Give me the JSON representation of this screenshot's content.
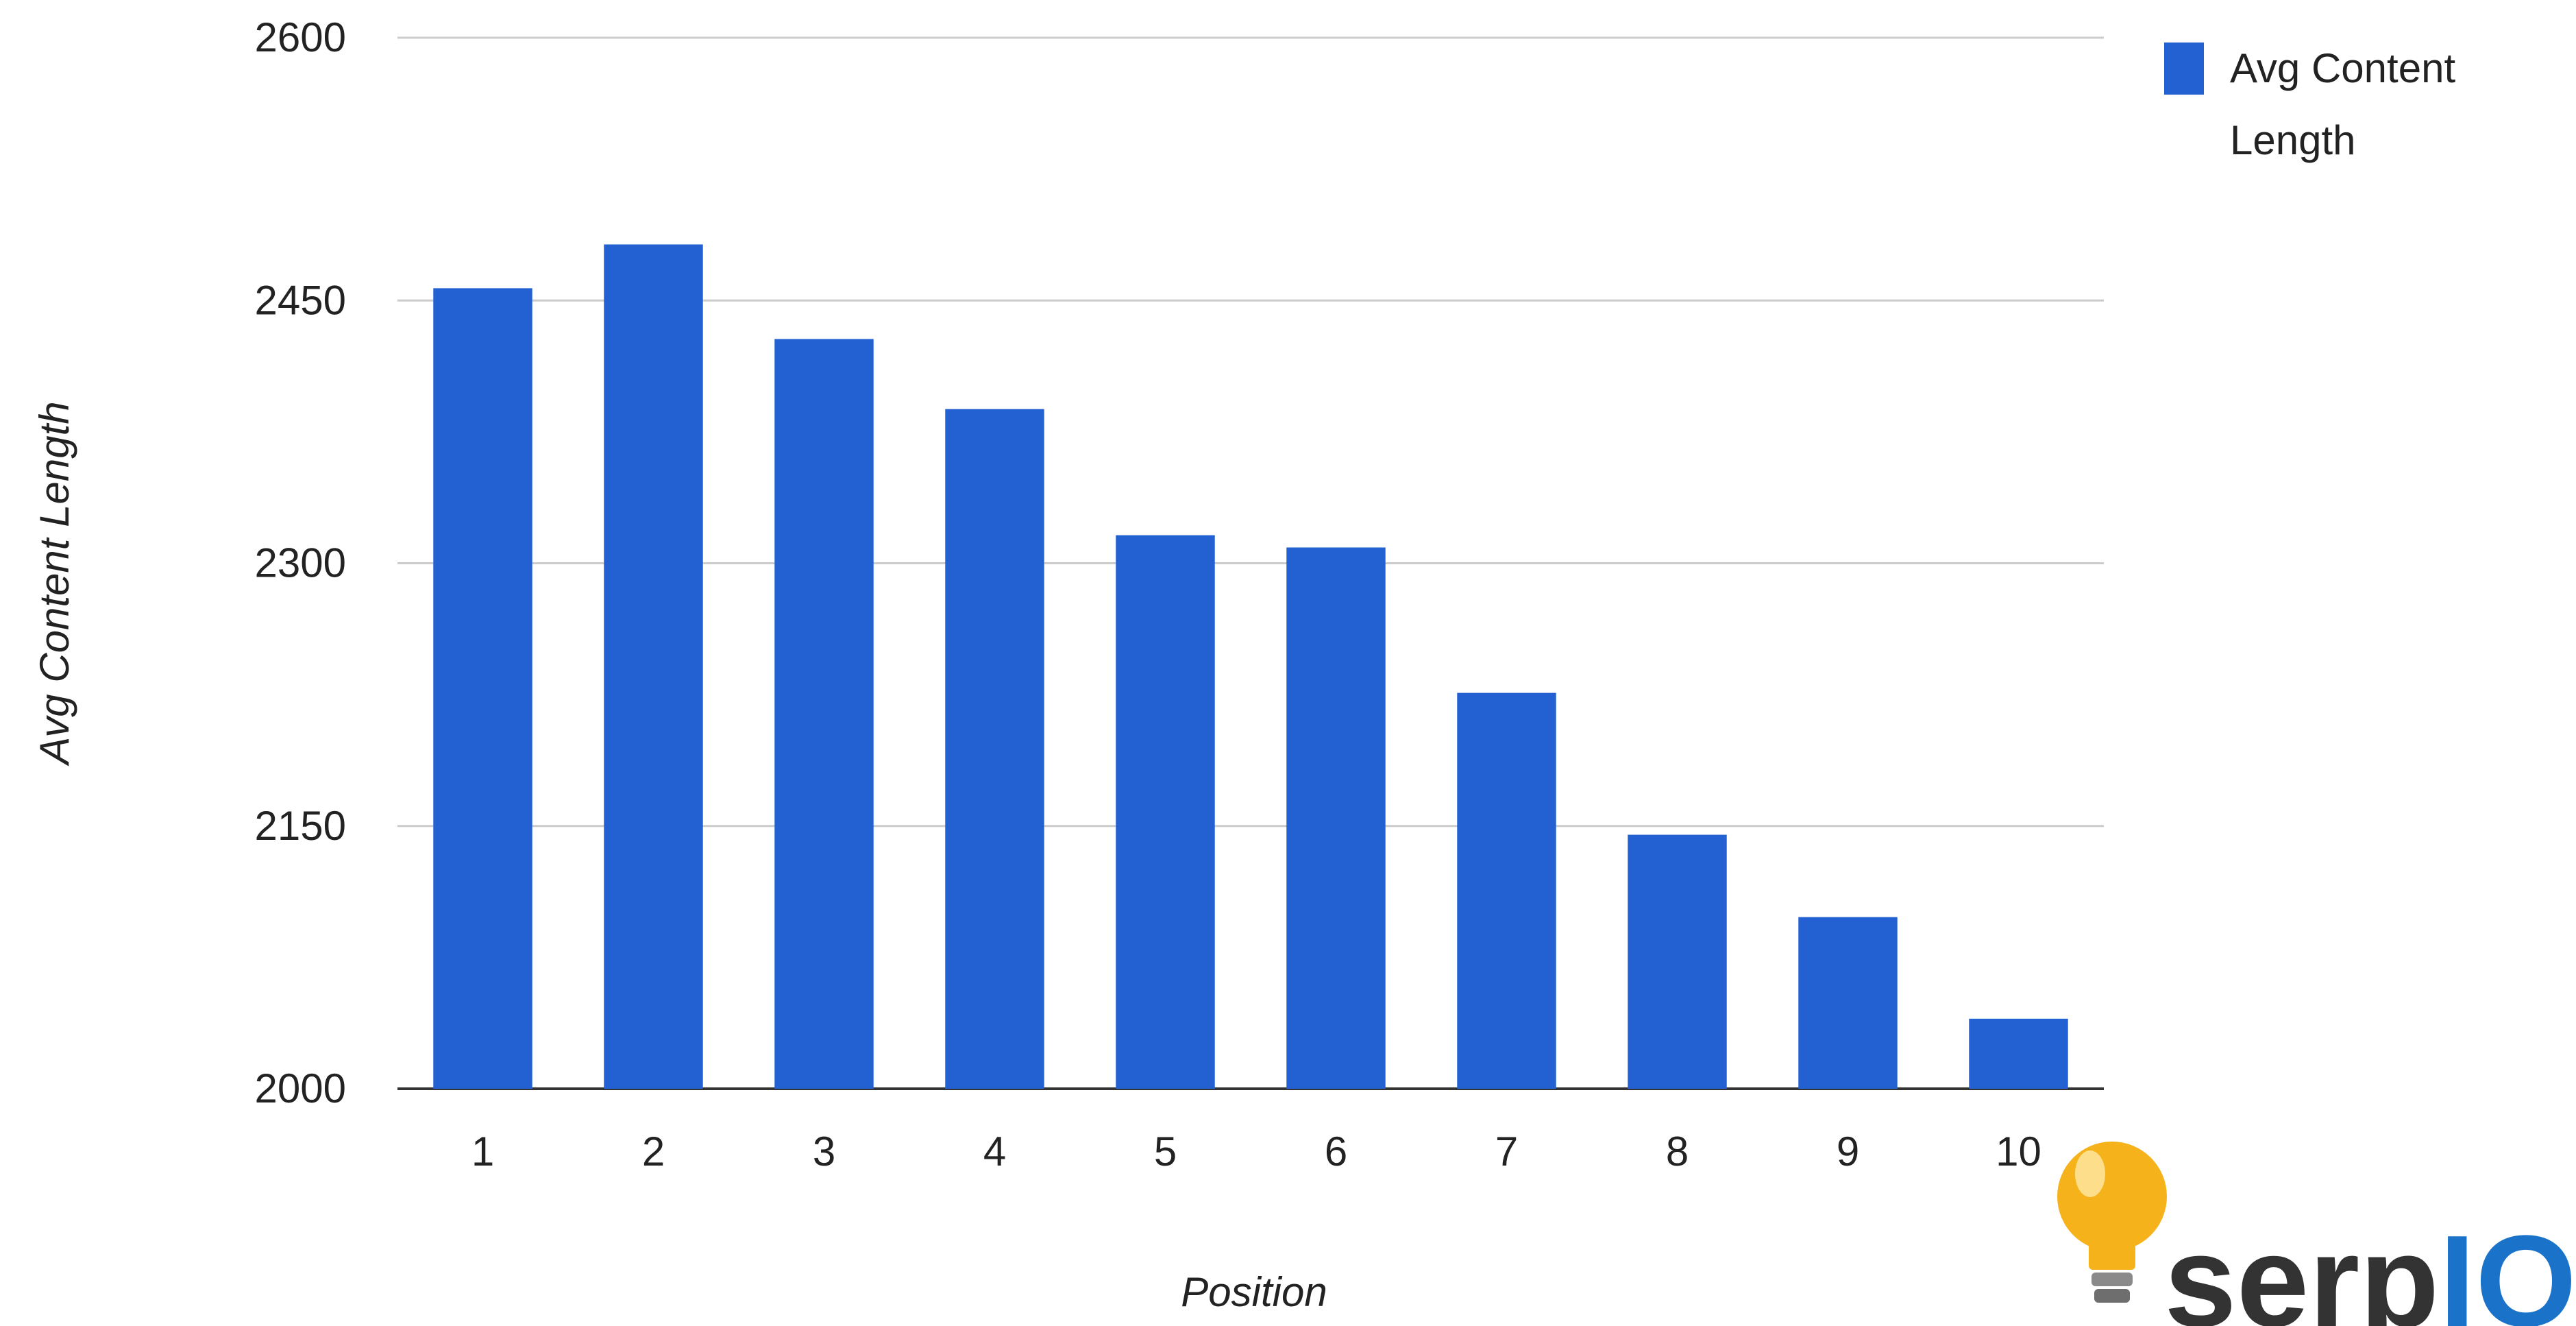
{
  "chart_data": {
    "type": "bar",
    "categories": [
      "1",
      "2",
      "3",
      "4",
      "5",
      "6",
      "7",
      "8",
      "9",
      "10"
    ],
    "series": [
      {
        "name": "Avg Content Length",
        "values": [
          2457,
          2482,
          2428,
          2388,
          2316,
          2309,
          2226,
          2145,
          2098,
          2040
        ]
      }
    ],
    "xlabel": "Position",
    "ylabel": "Avg Content Length",
    "ylim": [
      2000,
      2600
    ],
    "yticks": [
      2000,
      2150,
      2300,
      2450,
      2600
    ],
    "grid": true,
    "legend": "top-right",
    "bar_color": "#2361d2"
  },
  "logo": {
    "text_dark": "serp",
    "text_accent": "IQ",
    "dark_color": "#333333",
    "accent_color": "#1a73c8",
    "bulb_color": "#f5b21b",
    "icon": "lightbulb-icon"
  }
}
